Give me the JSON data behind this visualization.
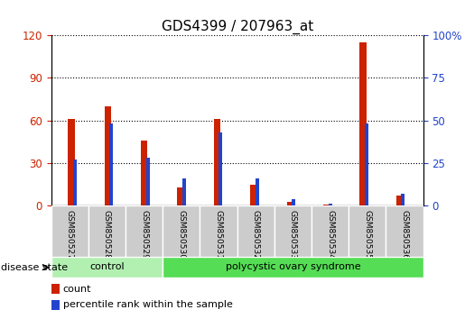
{
  "title": "GDS4399 / 207963_at",
  "samples": [
    "GSM850527",
    "GSM850528",
    "GSM850529",
    "GSM850530",
    "GSM850531",
    "GSM850532",
    "GSM850533",
    "GSM850534",
    "GSM850535",
    "GSM850536"
  ],
  "count": [
    61,
    70,
    46,
    13,
    61,
    15,
    3,
    1,
    115,
    7
  ],
  "percentile": [
    27,
    48,
    28,
    16,
    43,
    16,
    4,
    1,
    48,
    7
  ],
  "groups": [
    {
      "label": "control",
      "start": 0,
      "end": 3,
      "color": "#b2f0b2"
    },
    {
      "label": "polycystic ovary syndrome",
      "start": 3,
      "end": 10,
      "color": "#55dd55"
    }
  ],
  "left_ylim": [
    0,
    120
  ],
  "right_ylim": [
    0,
    100
  ],
  "left_yticks": [
    0,
    30,
    60,
    90,
    120
  ],
  "right_yticks": [
    0,
    25,
    50,
    75,
    100
  ],
  "right_yticklabels": [
    "0",
    "25",
    "50",
    "75",
    "100%"
  ],
  "count_color": "#cc2200",
  "percentile_color": "#2244cc",
  "red_bar_width": 0.18,
  "blue_bar_width": 0.1,
  "bg_color": "#ffffff",
  "grid_color": "#000000",
  "title_fontsize": 11,
  "axis_label_color_left": "#cc2200",
  "axis_label_color_right": "#2244cc",
  "legend_count_label": "count",
  "legend_percentile_label": "percentile rank within the sample",
  "disease_state_label": "disease state",
  "sample_bg_color": "#cccccc"
}
